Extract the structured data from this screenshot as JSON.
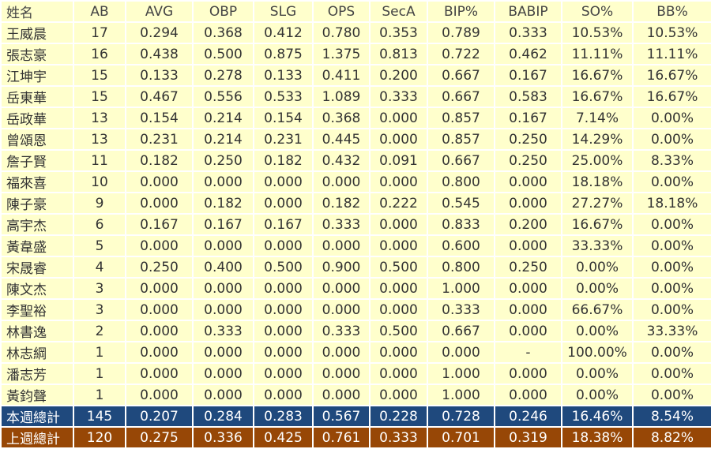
{
  "table": {
    "header": [
      "姓名",
      "AB",
      "AVG",
      "OBP",
      "SLG",
      "OPS",
      "SecA",
      "BIP%",
      "BABIP",
      "SO%",
      "BB%"
    ],
    "rows": [
      [
        "王威晨",
        "17",
        "0.294",
        "0.368",
        "0.412",
        "0.780",
        "0.353",
        "0.789",
        "0.333",
        "10.53%",
        "10.53%"
      ],
      [
        "張志豪",
        "16",
        "0.438",
        "0.500",
        "0.875",
        "1.375",
        "0.813",
        "0.722",
        "0.462",
        "11.11%",
        "11.11%"
      ],
      [
        "江坤宇",
        "15",
        "0.133",
        "0.278",
        "0.133",
        "0.411",
        "0.200",
        "0.667",
        "0.167",
        "16.67%",
        "16.67%"
      ],
      [
        "岳東華",
        "15",
        "0.467",
        "0.556",
        "0.533",
        "1.089",
        "0.333",
        "0.667",
        "0.583",
        "16.67%",
        "16.67%"
      ],
      [
        "岳政華",
        "13",
        "0.154",
        "0.214",
        "0.154",
        "0.368",
        "0.000",
        "0.857",
        "0.167",
        "7.14%",
        "0.00%"
      ],
      [
        "曾頌恩",
        "13",
        "0.231",
        "0.214",
        "0.231",
        "0.445",
        "0.000",
        "0.857",
        "0.250",
        "14.29%",
        "0.00%"
      ],
      [
        "詹子賢",
        "11",
        "0.182",
        "0.250",
        "0.182",
        "0.432",
        "0.091",
        "0.667",
        "0.250",
        "25.00%",
        "8.33%"
      ],
      [
        "福來喜",
        "10",
        "0.000",
        "0.000",
        "0.000",
        "0.000",
        "0.000",
        "0.800",
        "0.000",
        "18.18%",
        "0.00%"
      ],
      [
        "陳子豪",
        "9",
        "0.000",
        "0.182",
        "0.000",
        "0.182",
        "0.222",
        "0.545",
        "0.000",
        "27.27%",
        "18.18%"
      ],
      [
        "高宇杰",
        "6",
        "0.167",
        "0.167",
        "0.167",
        "0.333",
        "0.000",
        "0.833",
        "0.200",
        "16.67%",
        "0.00%"
      ],
      [
        "黃韋盛",
        "5",
        "0.000",
        "0.000",
        "0.000",
        "0.000",
        "0.000",
        "0.600",
        "0.000",
        "33.33%",
        "0.00%"
      ],
      [
        "宋晟睿",
        "4",
        "0.250",
        "0.400",
        "0.500",
        "0.900",
        "0.500",
        "0.800",
        "0.250",
        "0.00%",
        "0.00%"
      ],
      [
        "陳文杰",
        "3",
        "0.000",
        "0.000",
        "0.000",
        "0.000",
        "0.000",
        "1.000",
        "0.000",
        "0.00%",
        "0.00%"
      ],
      [
        "李聖裕",
        "3",
        "0.000",
        "0.000",
        "0.000",
        "0.000",
        "0.000",
        "0.333",
        "0.000",
        "66.67%",
        "0.00%"
      ],
      [
        "林書逸",
        "2",
        "0.000",
        "0.333",
        "0.000",
        "0.333",
        "0.500",
        "0.667",
        "0.000",
        "0.00%",
        "33.33%"
      ],
      [
        "林志綱",
        "1",
        "0.000",
        "0.000",
        "0.000",
        "0.000",
        "0.000",
        "0.000",
        "-",
        "100.00%",
        "0.00%"
      ],
      [
        "潘志芳",
        "1",
        "0.000",
        "0.000",
        "0.000",
        "0.000",
        "0.000",
        "1.000",
        "0.000",
        "0.00%",
        "0.00%"
      ],
      [
        "黃鈞聲",
        "1",
        "0.000",
        "0.000",
        "0.000",
        "0.000",
        "0.000",
        "1.000",
        "0.000",
        "0.00%",
        "0.00%"
      ]
    ],
    "totals": [
      [
        "本週總計",
        "145",
        "0.207",
        "0.284",
        "0.283",
        "0.567",
        "0.228",
        "0.728",
        "0.246",
        "16.46%",
        "8.54%"
      ],
      [
        "上週總計",
        "120",
        "0.275",
        "0.336",
        "0.425",
        "0.761",
        "0.333",
        "0.701",
        "0.319",
        "18.38%",
        "8.82%"
      ]
    ]
  }
}
